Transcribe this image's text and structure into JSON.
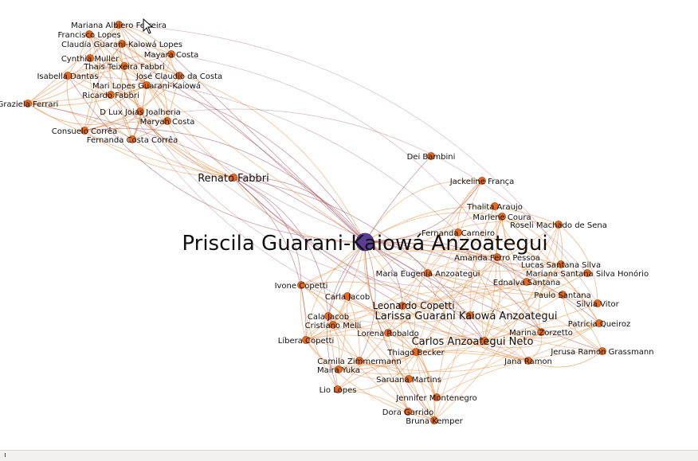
{
  "colors": {
    "node": "#e56a1e",
    "node_stroke": "#a8460f",
    "hub": "#5b3e95",
    "hub_stroke": "#3d2770",
    "edge_light": "#ee9c5a",
    "edge_dark": "#a04a58"
  },
  "nodes": [
    {
      "id": "priscila",
      "label": "Priscila Guarani-Kaiowá Anzoategui",
      "hub": true
    },
    {
      "id": "mariana_alb",
      "label": "Mariana Albiero Ferreira"
    },
    {
      "id": "francisco",
      "label": "Francisco Lopes"
    },
    {
      "id": "claudia",
      "label": "Claudia Guarani-Kaiowá Lopes"
    },
    {
      "id": "mayara",
      "label": "Mayara Costa"
    },
    {
      "id": "cynthia",
      "label": "Cynthia Muller"
    },
    {
      "id": "thais",
      "label": "Thais Teixeira Fabbri"
    },
    {
      "id": "isabella",
      "label": "Isabella Dantas"
    },
    {
      "id": "jose",
      "label": "José Claudio da Costa"
    },
    {
      "id": "mari",
      "label": "Mari Lopes Guarani-Kaiowá"
    },
    {
      "id": "ricardo",
      "label": "Ricardo Fabbri"
    },
    {
      "id": "graziela",
      "label": "Graziela Ferrari"
    },
    {
      "id": "dlux",
      "label": "D Lux Joias Joalheria"
    },
    {
      "id": "maryah",
      "label": "Maryah Costa"
    },
    {
      "id": "consuelo",
      "label": "Consuelo Corrêa"
    },
    {
      "id": "fernanda_cc",
      "label": "Fernanda Costa Corrêa"
    },
    {
      "id": "renato",
      "label": "Renato Fabbri"
    },
    {
      "id": "dei",
      "label": "Dei Bambini"
    },
    {
      "id": "jackeline",
      "label": "Jackeline França"
    },
    {
      "id": "thalita",
      "label": "Thalita Araujo"
    },
    {
      "id": "marlene",
      "label": "Marlene Coura"
    },
    {
      "id": "roseli",
      "label": "Roseli Machado de Sena"
    },
    {
      "id": "fernanda_car",
      "label": "Fernanda Carneiro"
    },
    {
      "id": "amanda",
      "label": "Amanda Ferro Pessoa"
    },
    {
      "id": "lucas",
      "label": "Lucas Santana Silva"
    },
    {
      "id": "maria_eug",
      "label": "Maria Eugenia Anzoategui"
    },
    {
      "id": "mariana_ssh",
      "label": "Mariana Santana Silva Honório"
    },
    {
      "id": "ednalva",
      "label": "Ednalva Santana"
    },
    {
      "id": "ivone",
      "label": "Ivone Copetti"
    },
    {
      "id": "paulo",
      "label": "Paulo Santana"
    },
    {
      "id": "carla",
      "label": "Carla Jacob"
    },
    {
      "id": "silvia",
      "label": "Silvia Vitor"
    },
    {
      "id": "leonardo",
      "label": "Leonardo Copetti"
    },
    {
      "id": "larissa",
      "label": "Larissa Guarani Kaiowá Anzoategui"
    },
    {
      "id": "cala",
      "label": "Cala Jacob"
    },
    {
      "id": "patricia",
      "label": "Patricia Queiroz"
    },
    {
      "id": "cristiano",
      "label": "Cristiano Melli"
    },
    {
      "id": "lorena",
      "label": "Lorena Robaldo"
    },
    {
      "id": "marina",
      "label": "Marina Zorzetto"
    },
    {
      "id": "libera",
      "label": "Líbera Copetti"
    },
    {
      "id": "carlos",
      "label": "Carlos Anzoategui Neto"
    },
    {
      "id": "jerusa",
      "label": "Jerusa Ramon Grassmann"
    },
    {
      "id": "thiago",
      "label": "Thiago Becker"
    },
    {
      "id": "camila",
      "label": "Camila Zimmermann"
    },
    {
      "id": "jana",
      "label": "Jana Ramon"
    },
    {
      "id": "maira",
      "label": "Maira Yuka"
    },
    {
      "id": "saruana",
      "label": "Saruana Martins"
    },
    {
      "id": "lio",
      "label": "Lio Lopes"
    },
    {
      "id": "jennifer",
      "label": "Jennifer Montenegro"
    },
    {
      "id": "dora",
      "label": "Dora Garrido"
    },
    {
      "id": "bruna",
      "label": "Bruna Kemper"
    }
  ]
}
